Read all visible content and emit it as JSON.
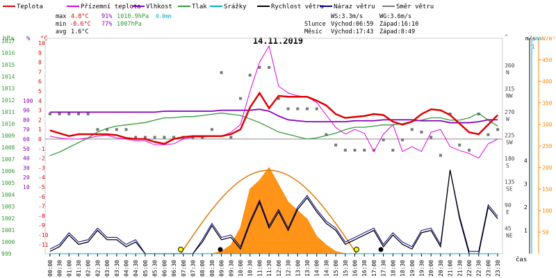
{
  "legend": [
    {
      "label": "Teplota",
      "color": "#dd0000"
    },
    {
      "label": "Přízemní teplota",
      "color": "#dd00dd"
    },
    {
      "label": "Vlhkost",
      "color": "#8800bb"
    },
    {
      "label": "Tlak",
      "color": "#339933"
    },
    {
      "label": "Srážky",
      "color": "#00aacc"
    },
    {
      "label": "Rychlost větru",
      "color": "#000000"
    },
    {
      "label": "Náraz větru",
      "color": "#000088"
    },
    {
      "label": "Směr větru",
      "color": "#777777"
    }
  ],
  "stats": {
    "max_label": "max",
    "max_temp": "4.8°C",
    "max_hum": "91%",
    "max_press": "1010.9hPa",
    "max_rain": "0.0mm",
    "min_label": "min",
    "min_temp": "-0.6°C",
    "min_hum": "77%",
    "min_press": "1007hPa",
    "avg_label": "avg",
    "avg_temp": "1.6°C"
  },
  "wind_stats": {
    "ws": "WS:3.3m/s",
    "wg": "WG:3.6m/s"
  },
  "sun": {
    "label": "Slunce",
    "rise": "Východ:06:59",
    "set": "Západ:16:10"
  },
  "moon": {
    "label": "Měsíc",
    "rise": "Východ:17:43",
    "set": "Západ:8:49"
  },
  "date": "14.11.2019",
  "xaxis_label": "čas",
  "units": {
    "hpa": "hPa",
    "pct": "%",
    "degc": "°C",
    "deg": "°",
    "ms": "m/s",
    "mm": "mm",
    "wm2": "W/m²"
  },
  "chart_data": {
    "type": "line",
    "title": "14.11.2019",
    "x": [
      "00:00",
      "00:30",
      "01:00",
      "01:30",
      "02:00",
      "02:30",
      "03:00",
      "03:30",
      "04:00",
      "04:30",
      "05:00",
      "05:30",
      "06:00",
      "06:30",
      "07:00",
      "07:30",
      "08:00",
      "08:30",
      "09:00",
      "09:30",
      "10:00",
      "10:30",
      "11:00",
      "11:30",
      "12:00",
      "12:30",
      "13:00",
      "13:30",
      "14:00",
      "14:30",
      "15:00",
      "15:30",
      "16:00",
      "16:30",
      "17:00",
      "17:30",
      "18:00",
      "18:30",
      "19:00",
      "19:30",
      "20:00",
      "20:30",
      "21:00",
      "21:30",
      "22:00",
      "22:30",
      "23:00",
      "23:30"
    ],
    "axes": {
      "pressure_hpa": {
        "ticks": [
          999,
          1000,
          1001,
          1002,
          1003,
          1004,
          1005,
          1006,
          1007,
          1008,
          1009,
          1010,
          1011,
          1012,
          1013,
          1014,
          1015,
          1016,
          1017
        ]
      },
      "humidity_pct": {
        "ticks": [
          10,
          20,
          30,
          40,
          50,
          60,
          70,
          80,
          90,
          100
        ]
      },
      "temperature_c": {
        "ticks": [
          -11,
          -10,
          -9,
          -8,
          -7,
          -6,
          -5,
          -4,
          -3,
          -2,
          -1,
          0,
          1,
          2,
          3,
          4,
          5,
          6,
          7,
          8,
          9,
          10
        ]
      },
      "wind_dir_deg": {
        "ticks": [
          "360 N",
          "315 NW",
          "270 W",
          "225 SW",
          "180 S",
          "135 SE",
          "90 E",
          "45 NE"
        ]
      },
      "wind_ms": {
        "ticks": [
          1,
          2,
          3,
          4
        ]
      },
      "rain_mm": {
        "ticks": [
          1
        ]
      },
      "solar_wm2": {
        "ticks": [
          50,
          100,
          150,
          200,
          250,
          300,
          350,
          400,
          450
        ]
      }
    },
    "series": [
      {
        "name": "Teplota",
        "color": "#dd0000",
        "values": [
          0.9,
          0.6,
          0.3,
          0.5,
          0.5,
          0.5,
          0.5,
          0.4,
          0.1,
          0.0,
          0.0,
          -0.3,
          -0.5,
          0.0,
          0.2,
          0.3,
          0.3,
          0.3,
          0.3,
          0.5,
          1.0,
          3.3,
          4.8,
          3.2,
          4.5,
          4.4,
          4.4,
          4.4,
          4.0,
          3.5,
          2.6,
          2.2,
          2.3,
          2.4,
          2.6,
          2.5,
          1.8,
          1.5,
          1.8,
          2.6,
          3.1,
          3.0,
          2.5,
          1.6,
          0.7,
          0.5,
          1.5,
          2.5
        ]
      },
      {
        "name": "Přízemní teplota",
        "color": "#dd00dd",
        "values": [
          0.3,
          0.1,
          0.0,
          0.0,
          0.1,
          0.3,
          0.4,
          0.1,
          0.0,
          -0.2,
          -0.2,
          -0.6,
          -0.6,
          -0.5,
          0.0,
          0.2,
          0.2,
          0.3,
          0.3,
          0.7,
          1.5,
          5.0,
          8.0,
          9.7,
          5.5,
          4.8,
          4.5,
          4.4,
          3.8,
          2.5,
          1.2,
          0.5,
          1.0,
          0.6,
          -1.3,
          0.5,
          1.5,
          -1.3,
          -0.8,
          -1.3,
          0.7,
          1.0,
          -0.8,
          -1.2,
          -1.5,
          -2.0,
          -0.5,
          0.0
        ]
      },
      {
        "name": "Vlhkost",
        "color": "#8800bb",
        "values": [
          88,
          88,
          88,
          88,
          88,
          88,
          88,
          88,
          88,
          88,
          88,
          88,
          89,
          89,
          89,
          89,
          89,
          89,
          90,
          90,
          90,
          90,
          91,
          89,
          84,
          80,
          79,
          78,
          78,
          78,
          78,
          78,
          79,
          79,
          79,
          80,
          80,
          80,
          80,
          79,
          79,
          79,
          77,
          77,
          77,
          78,
          80,
          80
        ]
      },
      {
        "name": "Tlak",
        "color": "#339933",
        "values": [
          1007.3,
          1007.6,
          1008.0,
          1008.4,
          1008.8,
          1009.3,
          1009.6,
          1009.8,
          1009.9,
          1010.0,
          1010.1,
          1010.3,
          1010.5,
          1010.5,
          1010.6,
          1010.6,
          1010.7,
          1010.8,
          1010.9,
          1010.8,
          1010.7,
          1010.4,
          1010.1,
          1009.7,
          1009.3,
          1009.1,
          1008.9,
          1008.7,
          1008.8,
          1009.0,
          1009.2,
          1009.5,
          1009.7,
          1009.7,
          1009.8,
          1009.9,
          1009.9,
          1010.0,
          1010.2,
          1010.3,
          1010.5,
          1010.5,
          1010.3,
          1010.3,
          1010.5,
          1010.9,
          1010.3,
          1009.8
        ]
      },
      {
        "name": "Rychlost větru",
        "color": "#000000",
        "values": [
          0.1,
          0.3,
          0.8,
          0.4,
          0.5,
          1.0,
          0.6,
          0.6,
          0.3,
          0.5,
          0.0,
          0.0,
          0.0,
          0.0,
          0.0,
          0.0,
          0.5,
          1.2,
          0.6,
          0.7,
          0.2,
          1.3,
          2.2,
          1.1,
          1.8,
          1.0,
          1.9,
          2.4,
          1.8,
          1.3,
          1.0,
          0.4,
          0.6,
          0.8,
          1.0,
          0.3,
          0.8,
          0.4,
          0.2,
          0.9,
          1.0,
          0.3,
          3.6,
          1.5,
          0.0,
          0.0,
          2.0,
          1.5
        ]
      },
      {
        "name": "Srážky",
        "color": "#00aacc",
        "values": [
          0,
          0,
          0,
          0,
          0,
          0,
          0,
          0,
          0,
          0,
          0,
          0,
          0,
          0,
          0,
          0,
          0,
          0,
          0,
          0,
          0,
          0,
          0,
          0,
          0,
          0,
          0,
          0,
          0,
          0,
          0,
          0,
          0,
          0,
          0,
          0,
          0,
          0,
          0,
          0,
          0,
          0,
          0,
          0,
          0,
          0,
          0,
          0
        ]
      },
      {
        "name": "Náraz větru",
        "color": "#000088",
        "values": [
          0.2,
          0.4,
          0.9,
          0.5,
          0.6,
          1.1,
          0.7,
          0.7,
          0.4,
          0.6,
          0.0,
          0.0,
          0.0,
          0.0,
          0.0,
          0.0,
          0.6,
          1.3,
          0.7,
          0.8,
          0.3,
          1.4,
          2.3,
          1.2,
          1.9,
          1.1,
          2.0,
          2.5,
          1.9,
          1.4,
          1.1,
          0.5,
          0.7,
          0.9,
          1.1,
          0.4,
          0.9,
          0.5,
          0.3,
          1.0,
          1.1,
          0.4,
          3.6,
          1.6,
          0.1,
          0.1,
          2.1,
          1.6
        ]
      },
      {
        "name": "Směr větru",
        "color": "#777777",
        "values": [
          270,
          270,
          270,
          270,
          270,
          240,
          240,
          240,
          240,
          225,
          225,
          225,
          225,
          225,
          225,
          225,
          225,
          240,
          350,
          225,
          300,
          345,
          360,
          360,
          300,
          280,
          280,
          280,
          280,
          230,
          210,
          200,
          200,
          200,
          200,
          220,
          200,
          220,
          240,
          235,
          225,
          190,
          270,
          210,
          200,
          270,
          230,
          240
        ]
      },
      {
        "name": "Sluneční záření",
        "color": "#ff8800",
        "values": [
          0,
          0,
          0,
          0,
          0,
          0,
          0,
          0,
          0,
          0,
          0,
          0,
          0,
          0,
          0,
          0,
          0,
          0,
          5,
          20,
          60,
          150,
          170,
          200,
          160,
          120,
          100,
          80,
          40,
          20,
          5,
          0,
          0,
          0,
          0,
          0,
          0,
          0,
          0,
          0,
          0,
          0,
          0,
          0,
          0,
          0,
          0,
          0
        ]
      }
    ]
  }
}
